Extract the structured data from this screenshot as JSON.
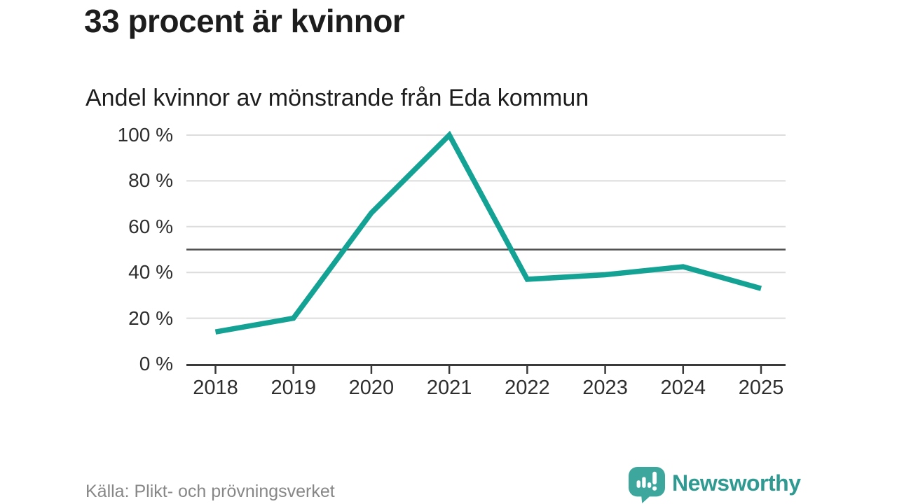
{
  "header": {
    "title": "33 procent är kvinnor",
    "subtitle": "Andel kvinnor av mönstrande från Eda kommun"
  },
  "chart_data": {
    "type": "line",
    "title": "33 procent är kvinnor",
    "subtitle": "Andel kvinnor av mönstrande från Eda kommun",
    "x": [
      2018,
      2019,
      2020,
      2021,
      2022,
      2023,
      2024,
      2025
    ],
    "values": [
      14,
      20,
      66,
      100,
      37,
      39,
      42.5,
      33
    ],
    "unit": "%",
    "xlabel": "",
    "ylabel": "",
    "ylim": [
      0,
      100
    ],
    "yticks": [
      0,
      20,
      40,
      60,
      80,
      100
    ],
    "ytick_suffix": " %",
    "reference_line": 50,
    "grid": true,
    "legend": "none",
    "colors": {
      "line": "#14a295",
      "grid": "#dcdcdc",
      "axis": "#3a3a3a",
      "reference_line": "#4f4f4f",
      "tick_label": "#2e2e2e"
    }
  },
  "footer": {
    "source": "Källa: Plikt- och prövningsverket",
    "brand_name": "Newsworthy",
    "brand_color": "#2f9a92",
    "brand_icon": "speech-bubble-bar-chart-exclamation",
    "brand_icon_color": "#3da69d"
  }
}
